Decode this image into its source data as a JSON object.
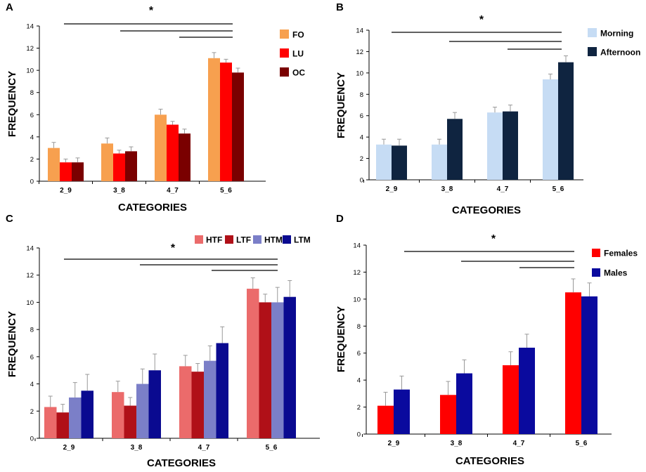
{
  "figure": {
    "significance_marker": "*"
  },
  "chart_data": [
    {
      "panel": "A",
      "type": "bar",
      "xlabel": "CATEGORIES",
      "ylabel": "FREQUENCY",
      "ylim": [
        0,
        14
      ],
      "yticks": [
        0,
        2,
        4,
        6,
        8,
        10,
        12,
        14
      ],
      "grid": false,
      "categories": [
        "2_9",
        "3_8",
        "4_7",
        "5_6"
      ],
      "legend_position": "right",
      "series": [
        {
          "name": "FO",
          "color": "#f7a04f",
          "values": [
            3.0,
            3.4,
            6.0,
            11.1
          ],
          "errors": [
            0.5,
            0.5,
            0.5,
            0.5
          ]
        },
        {
          "name": "LU",
          "color": "#ff0000",
          "values": [
            1.7,
            2.5,
            5.1,
            10.7
          ],
          "errors": [
            0.3,
            0.3,
            0.3,
            0.3
          ]
        },
        {
          "name": "OC",
          "color": "#7a0000",
          "values": [
            1.7,
            2.7,
            4.3,
            9.8
          ],
          "errors": [
            0.4,
            0.4,
            0.4,
            0.4
          ]
        }
      ],
      "significance": {
        "label": "*",
        "brackets": [
          [
            "2_9",
            "5_6"
          ],
          [
            "3_8",
            "5_6"
          ],
          [
            "4_7",
            "5_6"
          ]
        ]
      }
    },
    {
      "panel": "B",
      "type": "bar",
      "xlabel": "CATEGORIES",
      "ylabel": "FREQUENCY",
      "ylim": [
        0,
        14
      ],
      "yticks": [
        0,
        2,
        4,
        6,
        8,
        10,
        12,
        14
      ],
      "grid": false,
      "categories": [
        "2_9",
        "3_8",
        "4_7",
        "5_6"
      ],
      "legend_position": "right",
      "series": [
        {
          "name": "Morning",
          "color": "#c6dcf4",
          "values": [
            3.3,
            3.3,
            6.3,
            9.4
          ],
          "errors": [
            0.5,
            0.5,
            0.5,
            0.5
          ]
        },
        {
          "name": "Afternoon",
          "color": "#0f2440",
          "values": [
            3.2,
            5.7,
            6.4,
            11.0
          ],
          "errors": [
            0.6,
            0.6,
            0.6,
            0.6
          ]
        }
      ],
      "significance": {
        "label": "*",
        "brackets": [
          [
            "2_9",
            "5_6"
          ],
          [
            "3_8",
            "5_6"
          ],
          [
            "4_7",
            "5_6"
          ]
        ]
      }
    },
    {
      "panel": "C",
      "type": "bar",
      "xlabel": "CATEGORIES",
      "ylabel": "FREQUENCY",
      "ylim": [
        0,
        14
      ],
      "yticks": [
        0,
        2,
        4,
        6,
        8,
        10,
        12,
        14
      ],
      "grid": false,
      "categories": [
        "2_9",
        "3_8",
        "4_7",
        "5_6"
      ],
      "legend_position": "top",
      "series": [
        {
          "name": "HTF",
          "color": "#eb6b6b",
          "values": [
            2.3,
            3.4,
            5.3,
            11.0
          ],
          "errors": [
            0.8,
            0.8,
            0.8,
            0.8
          ]
        },
        {
          "name": "LTF",
          "color": "#b01018",
          "values": [
            1.9,
            2.4,
            4.9,
            10.0
          ],
          "errors": [
            0.6,
            0.6,
            0.6,
            0.6
          ]
        },
        {
          "name": "HTM",
          "color": "#7b7fc8",
          "values": [
            3.0,
            4.0,
            5.7,
            10.0
          ],
          "errors": [
            1.1,
            1.1,
            1.1,
            1.1
          ]
        },
        {
          "name": "LTM",
          "color": "#0a0a90",
          "values": [
            3.5,
            5.0,
            7.0,
            10.4
          ],
          "errors": [
            1.2,
            1.2,
            1.2,
            1.2
          ]
        }
      ],
      "significance": {
        "label": "*",
        "brackets": [
          [
            "2_9",
            "5_6"
          ],
          [
            "3_8",
            "5_6"
          ],
          [
            "4_7",
            "5_6"
          ]
        ]
      }
    },
    {
      "panel": "D",
      "type": "bar",
      "xlabel": "CATEGORIES",
      "ylabel": "FREQUENCY",
      "ylim": [
        0,
        14
      ],
      "yticks": [
        0,
        2,
        4,
        6,
        8,
        10,
        12,
        14
      ],
      "grid": false,
      "categories": [
        "2_9",
        "3_8",
        "4_7",
        "5_6"
      ],
      "legend_position": "right",
      "series": [
        {
          "name": "Females",
          "color": "#ff0000",
          "values": [
            2.1,
            2.9,
            5.1,
            10.5
          ],
          "errors": [
            1.0,
            1.0,
            1.0,
            1.0
          ]
        },
        {
          "name": "Males",
          "color": "#0a0a9e",
          "values": [
            3.3,
            4.5,
            6.4,
            10.2
          ],
          "errors": [
            1.0,
            1.0,
            1.0,
            1.0
          ]
        }
      ],
      "significance": {
        "label": "*",
        "brackets": [
          [
            "2_9",
            "5_6"
          ],
          [
            "3_8",
            "5_6"
          ],
          [
            "4_7",
            "5_6"
          ]
        ]
      }
    }
  ]
}
